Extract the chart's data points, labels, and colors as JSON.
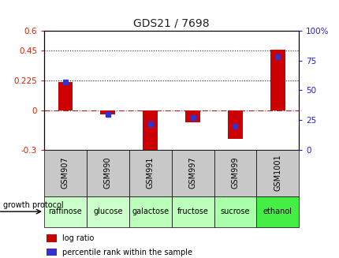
{
  "title": "GDS21 / 7698",
  "samples": [
    "GSM907",
    "GSM990",
    "GSM991",
    "GSM997",
    "GSM999",
    "GSM1001"
  ],
  "protocols": [
    "raffinose",
    "glucose",
    "galactose",
    "fructose",
    "sucrose",
    "ethanol"
  ],
  "log_ratios": [
    0.215,
    -0.03,
    -0.35,
    -0.09,
    -0.22,
    0.455
  ],
  "percentile_ranks": [
    57,
    30,
    22,
    27,
    20,
    78
  ],
  "bar_color": "#cc0000",
  "dot_color": "#3333cc",
  "ylim_left": [
    -0.3,
    0.6
  ],
  "ylim_right": [
    0,
    100
  ],
  "yticks_left": [
    -0.3,
    0.0,
    0.225,
    0.45,
    0.6
  ],
  "ytick_labels_left": [
    "-0.3",
    "0",
    "0.225",
    "0.45",
    "0.6"
  ],
  "yticks_right": [
    0,
    25,
    50,
    75,
    100
  ],
  "ytick_labels_right": [
    "0",
    "25",
    "50",
    "75",
    "100%"
  ],
  "hlines": [
    0.225,
    0.45
  ],
  "zero_line_color": "#aa2222",
  "hline_color": "#222222",
  "protocol_colors": [
    "#ccffcc",
    "#ccffcc",
    "#bbffbb",
    "#bbffbb",
    "#aaffaa",
    "#44ee44"
  ],
  "left_axis_color": "#cc2200",
  "right_axis_color": "#2222cc",
  "bar_width": 0.35,
  "dot_size": 5,
  "title_color": "#222222",
  "title_fontsize": 10,
  "gsm_bg_color": "#c8c8c8",
  "gsm_fontsize": 7,
  "protocol_fontsize": 7
}
